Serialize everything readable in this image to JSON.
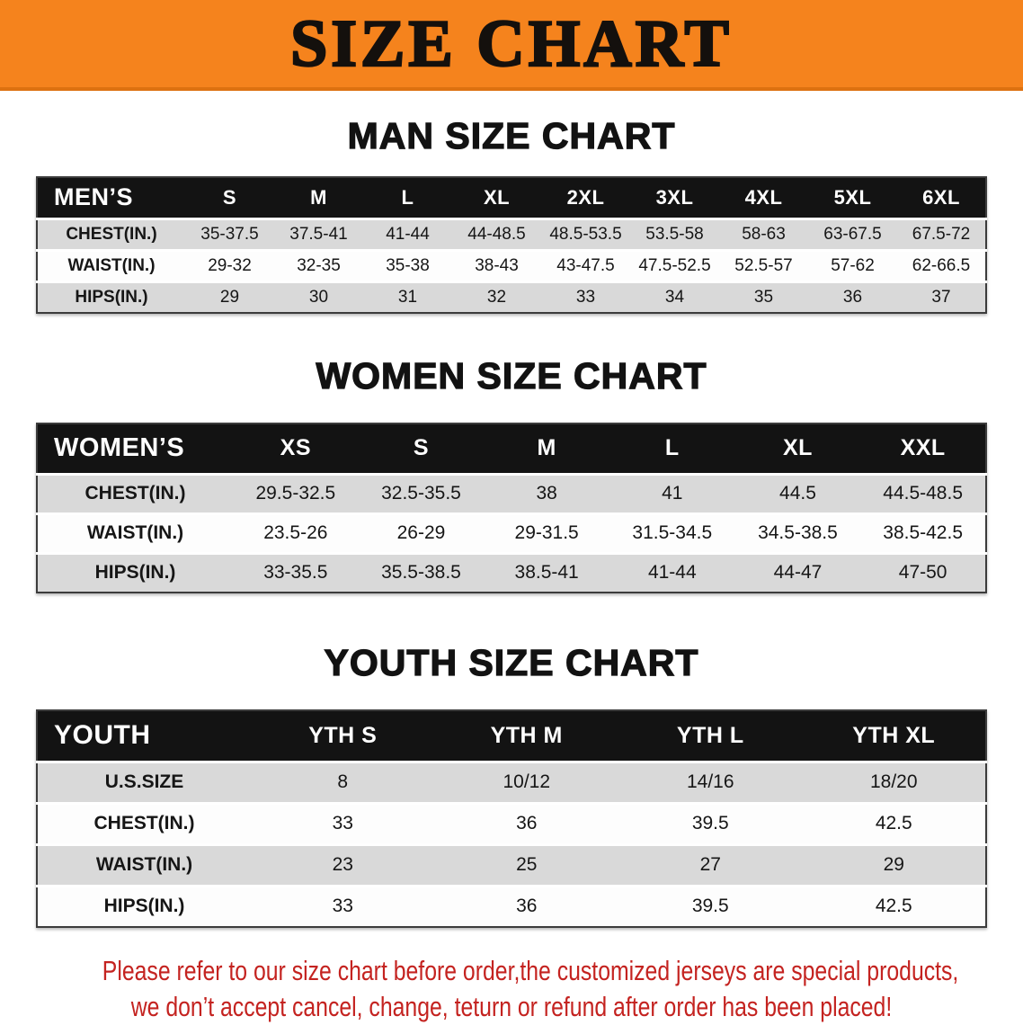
{
  "banner": {
    "title": "SIZE CHART"
  },
  "sections": {
    "men": {
      "heading": "MAN SIZE CHART",
      "table": {
        "corner": "MEN’S",
        "sizes": [
          "S",
          "M",
          "L",
          "XL",
          "2XL",
          "3XL",
          "4XL",
          "5XL",
          "6XL"
        ],
        "rows": [
          {
            "label": "CHEST(IN.)",
            "values": [
              "35-37.5",
              "37.5-41",
              "41-44",
              "44-48.5",
              "48.5-53.5",
              "53.5-58",
              "58-63",
              "63-67.5",
              "67.5-72"
            ]
          },
          {
            "label": "WAIST(IN.)",
            "values": [
              "29-32",
              "32-35",
              "35-38",
              "38-43",
              "43-47.5",
              "47.5-52.5",
              "52.5-57",
              "57-62",
              "62-66.5"
            ]
          },
          {
            "label": "HIPS(IN.)",
            "values": [
              "29",
              "30",
              "31",
              "32",
              "33",
              "34",
              "35",
              "36",
              "37"
            ]
          }
        ]
      }
    },
    "women": {
      "heading": "WOMEN SIZE CHART",
      "table": {
        "corner": "WOMEN’S",
        "sizes": [
          "XS",
          "S",
          "M",
          "L",
          "XL",
          "XXL"
        ],
        "rows": [
          {
            "label": "CHEST(IN.)",
            "values": [
              "29.5-32.5",
              "32.5-35.5",
              "38",
              "41",
              "44.5",
              "44.5-48.5"
            ]
          },
          {
            "label": "WAIST(IN.)",
            "values": [
              "23.5-26",
              "26-29",
              "29-31.5",
              "31.5-34.5",
              "34.5-38.5",
              "38.5-42.5"
            ]
          },
          {
            "label": "HIPS(IN.)",
            "values": [
              "33-35.5",
              "35.5-38.5",
              "38.5-41",
              "41-44",
              "44-47",
              "47-50"
            ]
          }
        ]
      }
    },
    "youth": {
      "heading": "YOUTH SIZE CHART",
      "table": {
        "corner": "YOUTH",
        "sizes": [
          "YTH S",
          "YTH M",
          "YTH L",
          "YTH XL"
        ],
        "rows": [
          {
            "label": "U.S.SIZE",
            "values": [
              "8",
              "10/12",
              "14/16",
              "18/20"
            ]
          },
          {
            "label": "CHEST(IN.)",
            "values": [
              "33",
              "36",
              "39.5",
              "42.5"
            ]
          },
          {
            "label": "WAIST(IN.)",
            "values": [
              "23",
              "25",
              "27",
              "29"
            ]
          },
          {
            "label": "HIPS(IN.)",
            "values": [
              "33",
              "36",
              "39.5",
              "42.5"
            ]
          }
        ]
      }
    }
  },
  "footer": {
    "line1": "Please refer to our size chart before order,the customized jerseys are special products,",
    "line2": "we don’t accept cancel, change, teturn or refund after order has been placed!"
  },
  "colors": {
    "banner_bg": "#f5831d",
    "header_bg": "#131313",
    "row_alt": "#d9d9d9",
    "footer_text": "#c42320"
  }
}
